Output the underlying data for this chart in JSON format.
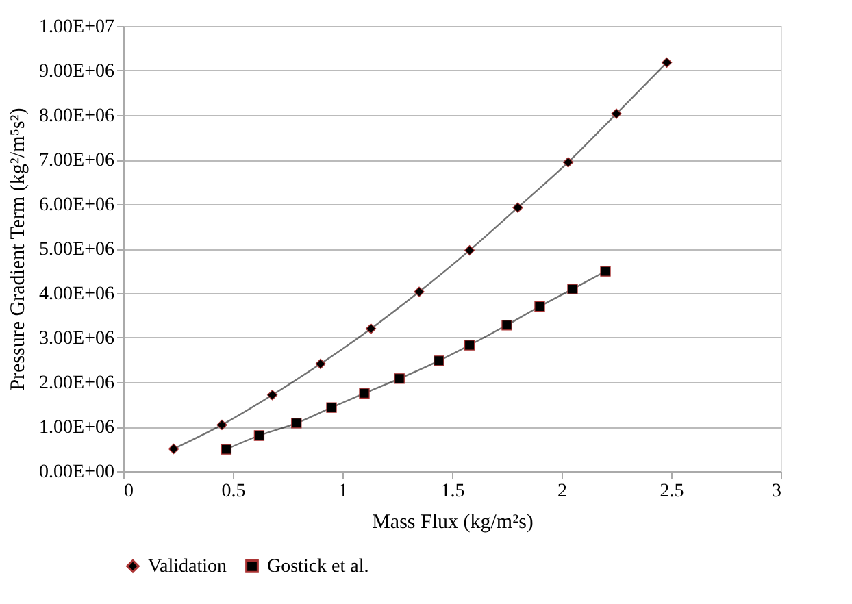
{
  "chart_data": {
    "type": "line",
    "xlabel": "Mass Flux (kg/m²s)",
    "ylabel": "Pressure Gradient Term (kg²/m⁵s²)",
    "xlim": [
      0,
      3
    ],
    "xticks": [
      0,
      0.5,
      1,
      1.5,
      2,
      2.5,
      3
    ],
    "ylim": [
      0,
      10000000
    ],
    "yticks": [
      {
        "value": 0,
        "label": "0.00E+00"
      },
      {
        "value": 1000000,
        "label": "1.00E+06"
      },
      {
        "value": 2000000,
        "label": "2.00E+06"
      },
      {
        "value": 3000000,
        "label": "3.00E+06"
      },
      {
        "value": 4000000,
        "label": "4.00E+06"
      },
      {
        "value": 5000000,
        "label": "5.00E+06"
      },
      {
        "value": 6000000,
        "label": "6.00E+06"
      },
      {
        "value": 7000000,
        "label": "7.00E+06"
      },
      {
        "value": 8000000,
        "label": "8.00E+06"
      },
      {
        "value": 9000000,
        "label": "9.00E+06"
      },
      {
        "value": 10000000,
        "label": "1.00E+07"
      }
    ],
    "grid": "y",
    "legend": "bottom",
    "line_style": "solid",
    "series": [
      {
        "name": "Validation",
        "color": "#000000",
        "marker": "diamond",
        "x": [
          0.23,
          0.45,
          0.68,
          0.9,
          1.13,
          1.35,
          1.58,
          1.8,
          2.03,
          2.25,
          2.48
        ],
        "values": [
          500000,
          1040000,
          1710000,
          2410000,
          3200000,
          4030000,
          4960000,
          5920000,
          6940000,
          8030000,
          9180000
        ]
      },
      {
        "name": "Gostick et al.",
        "color": "#000000",
        "marker": "square",
        "x": [
          0.47,
          0.62,
          0.79,
          0.95,
          1.1,
          1.26,
          1.44,
          1.58,
          1.75,
          1.9,
          2.05,
          2.2
        ],
        "values": [
          490000,
          800000,
          1080000,
          1430000,
          1750000,
          2080000,
          2480000,
          2830000,
          3280000,
          3700000,
          4090000,
          4490000
        ]
      }
    ]
  }
}
